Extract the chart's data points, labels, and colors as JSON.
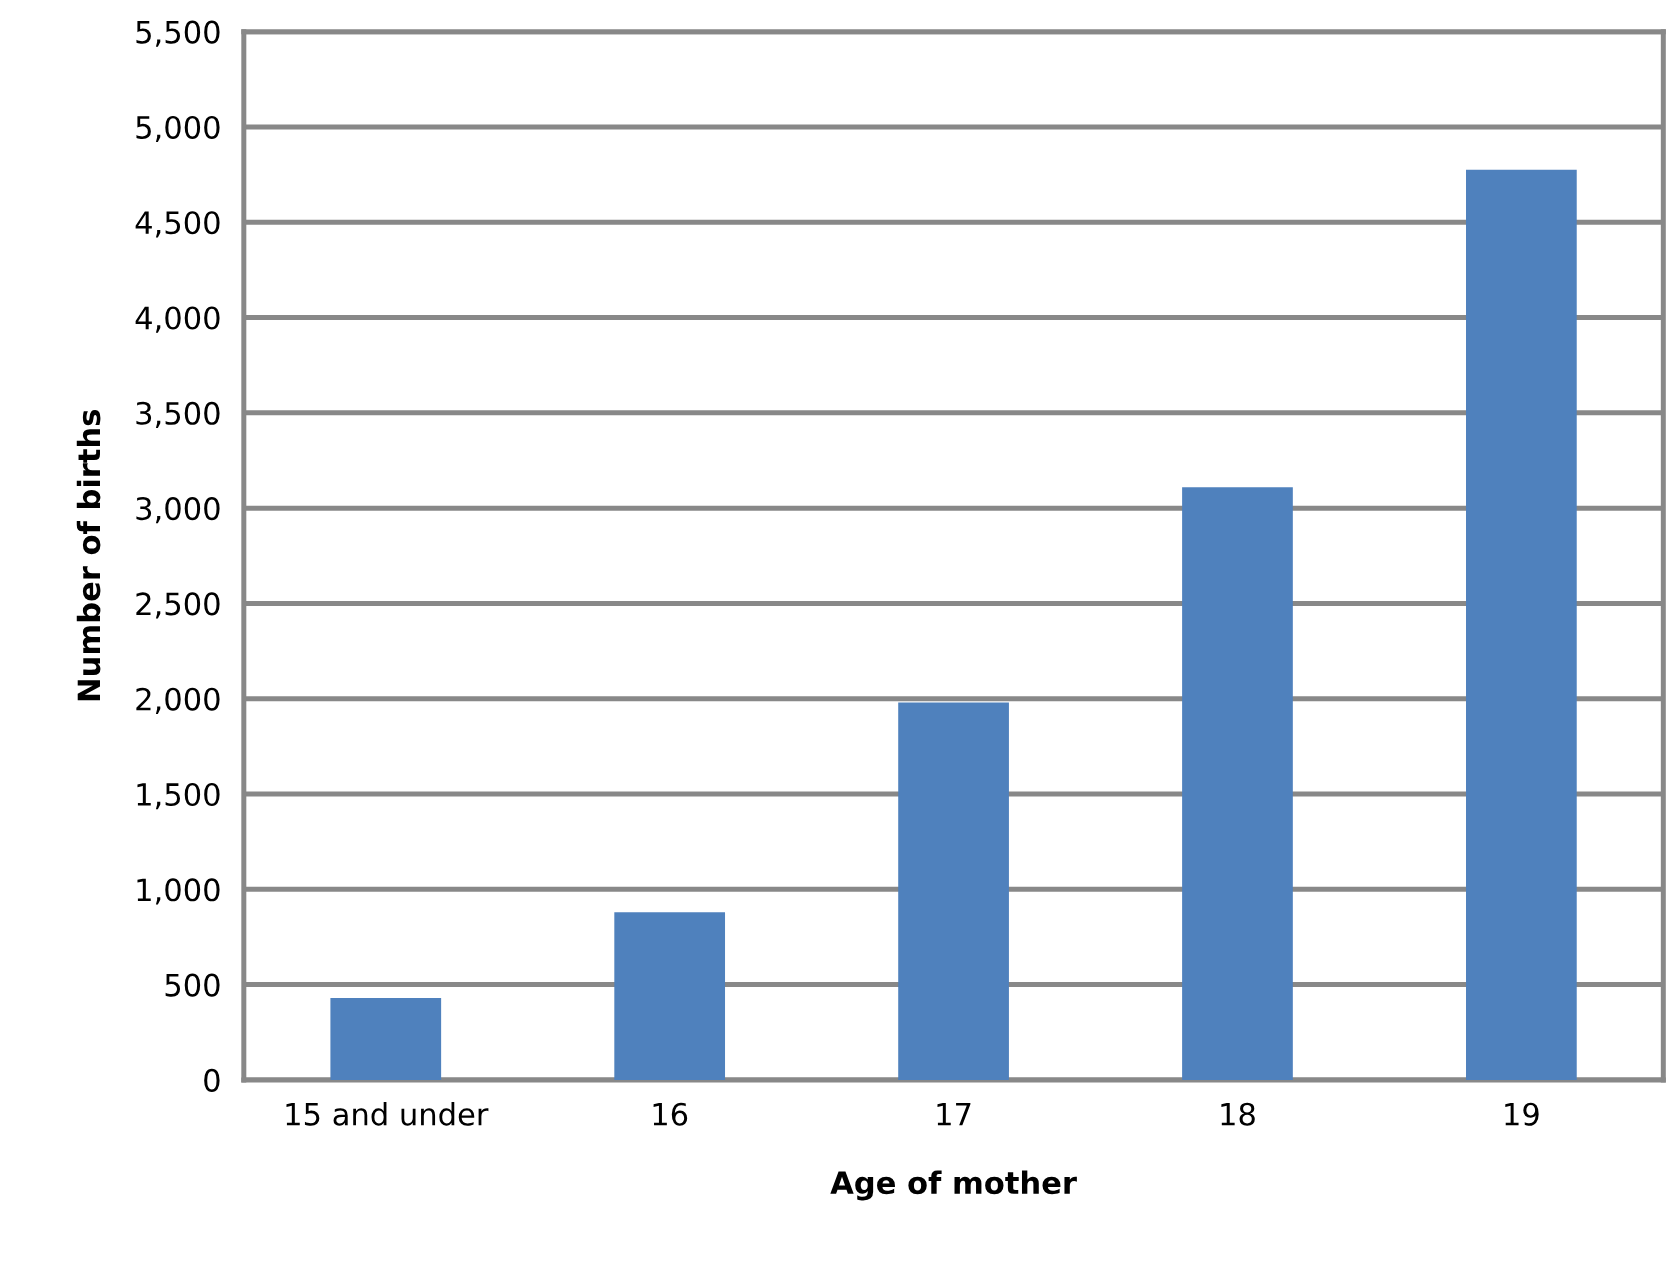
{
  "chart_data": {
    "type": "bar",
    "xlabel": "Age of mother",
    "ylabel": "Number of births",
    "categories": [
      "15 and under",
      "16",
      "17",
      "18",
      "19"
    ],
    "values": [
      430,
      880,
      1980,
      3110,
      4775
    ],
    "color": "#4f81bd",
    "ylim": [
      0,
      5500
    ],
    "yticks": [
      {
        "value": 0,
        "label": "0"
      },
      {
        "value": 500,
        "label": "500"
      },
      {
        "value": 1000,
        "label": "1,000"
      },
      {
        "value": 1500,
        "label": "1,500"
      },
      {
        "value": 2000,
        "label": "2,000"
      },
      {
        "value": 2500,
        "label": "2,500"
      },
      {
        "value": 3000,
        "label": "3,000"
      },
      {
        "value": 3500,
        "label": "3,500"
      },
      {
        "value": 4000,
        "label": "4,000"
      },
      {
        "value": 4500,
        "label": "4,500"
      },
      {
        "value": 5000,
        "label": "5,000"
      },
      {
        "value": 5500,
        "label": "5,500"
      }
    ],
    "grid": "y",
    "legend": false
  }
}
